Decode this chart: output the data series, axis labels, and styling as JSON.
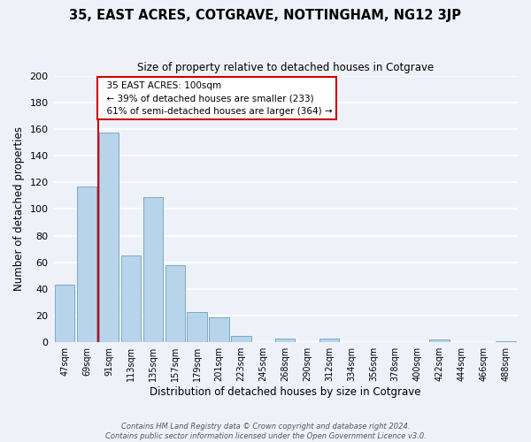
{
  "title": "35, EAST ACRES, COTGRAVE, NOTTINGHAM, NG12 3JP",
  "subtitle": "Size of property relative to detached houses in Cotgrave",
  "xlabel": "Distribution of detached houses by size in Cotgrave",
  "ylabel": "Number of detached properties",
  "bar_labels": [
    "47sqm",
    "69sqm",
    "91sqm",
    "113sqm",
    "135sqm",
    "157sqm",
    "179sqm",
    "201sqm",
    "223sqm",
    "245sqm",
    "268sqm",
    "290sqm",
    "312sqm",
    "334sqm",
    "356sqm",
    "378sqm",
    "400sqm",
    "422sqm",
    "444sqm",
    "466sqm",
    "488sqm"
  ],
  "bar_values": [
    43,
    117,
    157,
    65,
    109,
    58,
    23,
    19,
    5,
    0,
    3,
    0,
    3,
    0,
    0,
    0,
    0,
    2,
    0,
    0,
    1
  ],
  "bar_color": "#b8d4ea",
  "bar_edge_color": "#7aaac8",
  "vline_color": "#cc0000",
  "annotation_title": "35 EAST ACRES: 100sqm",
  "annotation_line1": "← 39% of detached houses are smaller (233)",
  "annotation_line2": "61% of semi-detached houses are larger (364) →",
  "annotation_box_color": "#ffffff",
  "annotation_box_edge": "#cc0000",
  "ylim": [
    0,
    200
  ],
  "yticks": [
    0,
    20,
    40,
    60,
    80,
    100,
    120,
    140,
    160,
    180,
    200
  ],
  "footer_line1": "Contains HM Land Registry data © Crown copyright and database right 2024.",
  "footer_line2": "Contains public sector information licensed under the Open Government Licence v3.0.",
  "bg_color": "#eef2f8",
  "grid_color": "#ffffff"
}
